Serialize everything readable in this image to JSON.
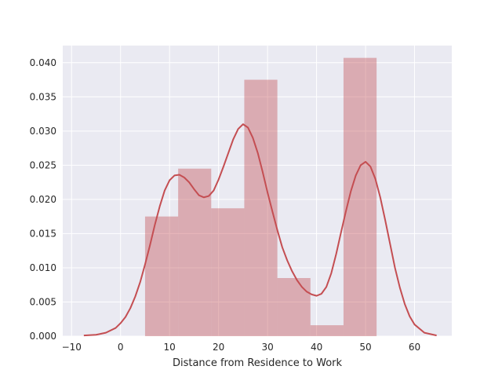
{
  "chart_data": {
    "type": "bar",
    "title": "",
    "xlabel": "Distance from Residence to Work",
    "ylabel": "",
    "xlim": [
      -11.8,
      67.6
    ],
    "ylim": [
      0,
      0.0425
    ],
    "grid": true,
    "colors": {
      "background": "#eaeaf2",
      "bar_fill": "#c44e52",
      "kde_line": "#c44e52",
      "grid": "#ffffff"
    },
    "x_ticks": [
      {
        "value": -10,
        "label": "−10"
      },
      {
        "value": 0,
        "label": "0"
      },
      {
        "value": 10,
        "label": "10"
      },
      {
        "value": 20,
        "label": "20"
      },
      {
        "value": 30,
        "label": "30"
      },
      {
        "value": 40,
        "label": "40"
      },
      {
        "value": 50,
        "label": "50"
      },
      {
        "value": 60,
        "label": "60"
      }
    ],
    "y_ticks": [
      {
        "value": 0.0,
        "label": "0.000"
      },
      {
        "value": 0.005,
        "label": "0.005"
      },
      {
        "value": 0.01,
        "label": "0.010"
      },
      {
        "value": 0.015,
        "label": "0.015"
      },
      {
        "value": 0.02,
        "label": "0.020"
      },
      {
        "value": 0.025,
        "label": "0.025"
      },
      {
        "value": 0.03,
        "label": "0.030"
      },
      {
        "value": 0.035,
        "label": "0.035"
      },
      {
        "value": 0.04,
        "label": "0.040"
      }
    ],
    "histogram": {
      "bin_edges": [
        5,
        11.75,
        18.5,
        25.25,
        32,
        38.75,
        45.5,
        52.25
      ],
      "values": [
        0.0175,
        0.0245,
        0.0187,
        0.0375,
        0.0085,
        0.0016,
        0.0407
      ]
    },
    "kde": {
      "x": [
        -7.5,
        -5,
        -3,
        -1,
        0,
        1,
        2,
        3,
        4,
        5,
        6,
        7,
        8,
        9,
        10,
        11,
        12,
        13,
        14,
        15,
        16,
        17,
        18,
        19,
        20,
        21,
        22,
        23,
        24,
        25,
        26,
        27,
        28,
        29,
        30,
        31,
        32,
        33,
        34,
        35,
        36,
        37,
        38,
        39,
        40,
        41,
        42,
        43,
        44,
        45,
        46,
        47,
        48,
        49,
        50,
        51,
        52,
        53,
        54,
        55,
        56,
        57,
        58,
        59,
        60,
        62,
        64.5
      ],
      "y": [
        0.0001,
        0.0002,
        0.0005,
        0.0012,
        0.0019,
        0.0028,
        0.0041,
        0.0058,
        0.0079,
        0.0105,
        0.0133,
        0.0163,
        0.019,
        0.0213,
        0.0228,
        0.0235,
        0.0236,
        0.0232,
        0.0225,
        0.0215,
        0.0206,
        0.0203,
        0.0205,
        0.0213,
        0.0229,
        0.0248,
        0.0268,
        0.0288,
        0.0303,
        0.031,
        0.0305,
        0.029,
        0.0268,
        0.024,
        0.021,
        0.0182,
        0.0155,
        0.013,
        0.0111,
        0.0095,
        0.0082,
        0.0072,
        0.0065,
        0.0061,
        0.0059,
        0.0062,
        0.0072,
        0.0092,
        0.012,
        0.0152,
        0.0183,
        0.0212,
        0.0235,
        0.025,
        0.0255,
        0.0248,
        0.023,
        0.0203,
        0.017,
        0.0135,
        0.01,
        0.0071,
        0.0047,
        0.0029,
        0.0017,
        0.0005,
        0.0001
      ]
    }
  }
}
